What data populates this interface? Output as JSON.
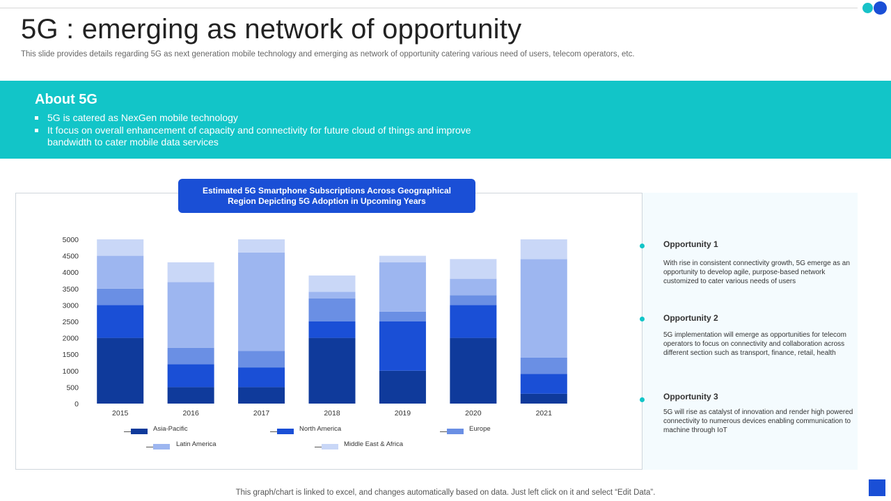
{
  "header": {
    "title": "5G : emerging as network of opportunity",
    "subtitle": "This slide provides details regarding 5G as next generation mobile technology and emerging as network of opportunity catering various need of users, telecom operators, etc."
  },
  "about": {
    "heading": "About 5G",
    "bullets": [
      "5G is catered as NexGen mobile technology",
      "It focus on overall enhancement of capacity and connectivity for future cloud of things and improve bandwidth to cater mobile data services"
    ]
  },
  "chart_data": {
    "type": "bar",
    "stacked": true,
    "title": "Estimated 5G Smartphone Subscriptions Across Geographical Region Depicting 5G Adoption  in Upcoming Years",
    "categories": [
      "2015",
      "2016",
      "2017",
      "2018",
      "2019",
      "2020",
      "2021"
    ],
    "series": [
      {
        "name": "Asia-Pacific",
        "color": "#0f3a9b",
        "values": [
          2000,
          500,
          500,
          2000,
          1000,
          2000,
          300
        ]
      },
      {
        "name": "North America",
        "color": "#1a4fd6",
        "values": [
          1000,
          700,
          600,
          500,
          1500,
          1000,
          600
        ]
      },
      {
        "name": "Europe",
        "color": "#6a8fe4",
        "values": [
          500,
          500,
          500,
          700,
          300,
          300,
          500
        ]
      },
      {
        "name": "Latin America",
        "color": "#9db6f0",
        "values": [
          1000,
          2000,
          3000,
          200,
          1500,
          500,
          3000
        ]
      },
      {
        "name": "Middle East & Africa",
        "color": "#c9d7f7",
        "values": [
          500,
          600,
          400,
          500,
          200,
          600,
          600
        ]
      }
    ],
    "ylim": [
      0,
      5000
    ],
    "yticks": [
      "0",
      "500",
      "1000",
      "1500",
      "2000",
      "2500",
      "3000",
      "3500",
      "4000",
      "4500",
      "5000"
    ],
    "xlabel": "",
    "ylabel": "",
    "grid": false,
    "legend": "bottom"
  },
  "opportunities": [
    {
      "title": "Opportunity  1",
      "text": "With rise in  consistent connectivity growth, 5G emerge as an opportunity to develop agile, purpose-based network customized to cater various needs of users"
    },
    {
      "title": "Opportunity  2",
      "text": "5G implementation  will emerge as opportunities for telecom operators to focus on connectivity and collaboration across different section such as transport, finance, retail, health"
    },
    {
      "title": "Opportunity  3",
      "text": "5G will rise as catalyst of innovation and render high powered connectivity to numerous devices enabling communication to machine through IoT"
    }
  ],
  "footer": {
    "note": "This graph/chart is linked to excel,  and changes automatically based on data. Just left click on it and select “Edit Data”."
  }
}
